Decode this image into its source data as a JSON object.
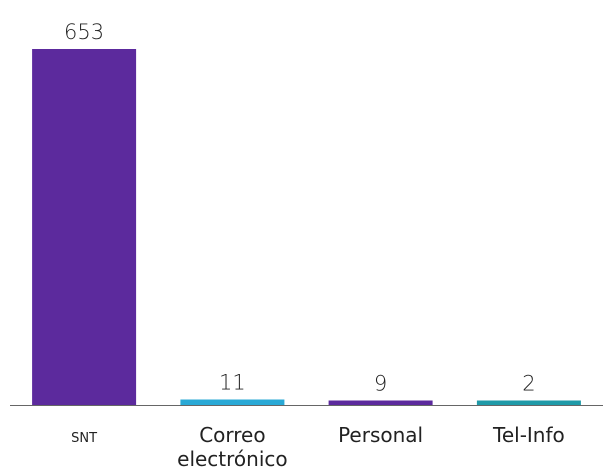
{
  "chart_data": {
    "type": "bar",
    "title": "",
    "xlabel": "",
    "ylabel": "",
    "categories": [
      "SNT",
      "Correo electrónico",
      "Personal",
      "Tel-Info"
    ],
    "category_lines": [
      [
        "SNT"
      ],
      [
        "Correo",
        "electrónico"
      ],
      [
        "Personal"
      ],
      [
        "Tel-Info"
      ]
    ],
    "values": [
      653,
      11,
      9,
      2
    ],
    "value_labels": [
      "653",
      "11",
      "9",
      "2"
    ],
    "bar_colors": [
      "#5c2a9d",
      "#29a9d6",
      "#5c2a9d",
      "#1f9aa8"
    ],
    "axis_color": "#666666",
    "ylim": [
      0,
      653
    ],
    "grid": false,
    "legend": "none"
  }
}
